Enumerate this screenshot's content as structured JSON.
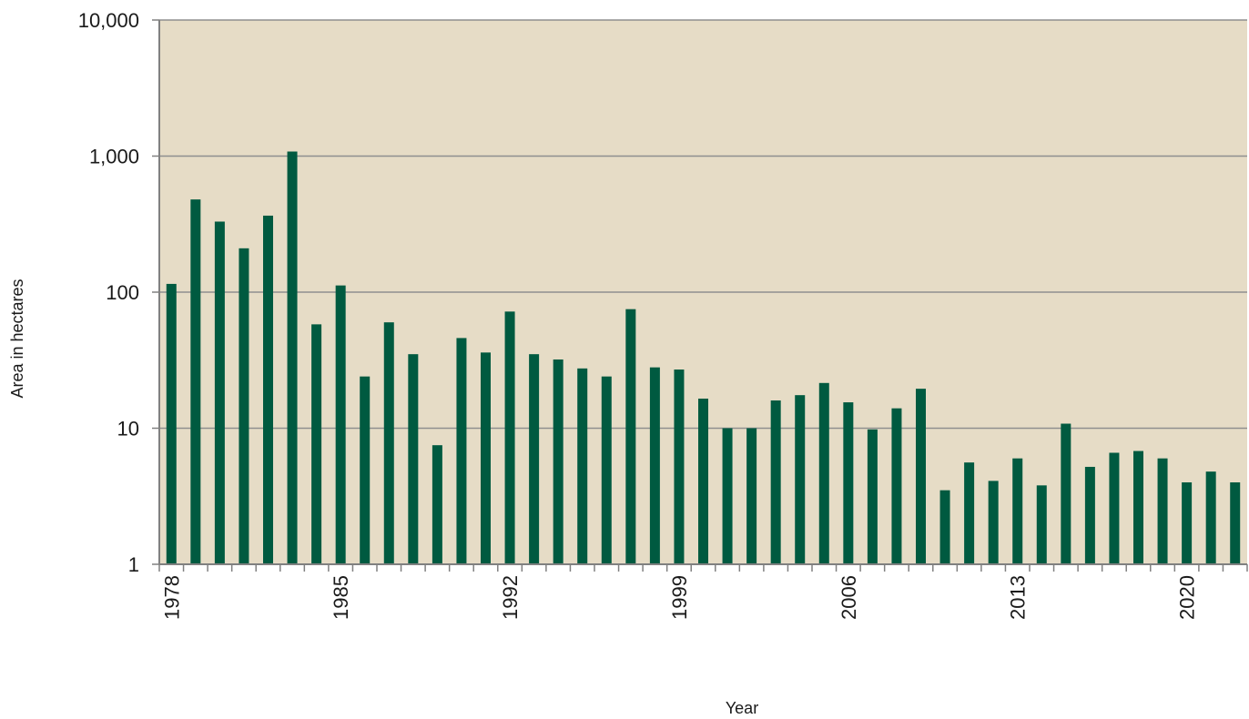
{
  "chart_data": {
    "type": "bar",
    "xlabel": "Year",
    "ylabel": "Area in hectares",
    "y_scale": "log",
    "ylim": [
      1,
      10000
    ],
    "y_ticks": [
      1,
      10,
      100,
      1000,
      10000
    ],
    "y_tick_labels": [
      "1",
      "10",
      "100",
      "1,000",
      "10,000"
    ],
    "x_tick_labels": [
      "1978",
      "1985",
      "1992",
      "1999",
      "2006",
      "2013",
      "2020"
    ],
    "grid": true,
    "legend": "none",
    "categories": [
      1978,
      1979,
      1980,
      1981,
      1982,
      1983,
      1984,
      1985,
      1986,
      1987,
      1988,
      1989,
      1990,
      1991,
      1992,
      1993,
      1994,
      1995,
      1996,
      1997,
      1998,
      1999,
      2000,
      2001,
      2002,
      2003,
      2004,
      2005,
      2006,
      2007,
      2008,
      2009,
      2010,
      2011,
      2012,
      2013,
      2014,
      2015,
      2016,
      2017,
      2018,
      2019,
      2020,
      2021,
      2022
    ],
    "values": [
      115,
      480,
      330,
      210,
      365,
      1080,
      58,
      112,
      24,
      60,
      35,
      7.5,
      46,
      36,
      72,
      35,
      32,
      27.5,
      24,
      75,
      28,
      27,
      16.5,
      10,
      10,
      16,
      17.5,
      21.5,
      15.5,
      9.8,
      14,
      19.5,
      3.5,
      5.6,
      4.1,
      6,
      3.8,
      10.8,
      5.2,
      6.6,
      6.8,
      6,
      4,
      4.8,
      4
    ],
    "colors": {
      "bar": "#005a40",
      "plot_background": "#e6dcc6",
      "gridline": "#8f8f8f",
      "axis": "#808080"
    }
  }
}
